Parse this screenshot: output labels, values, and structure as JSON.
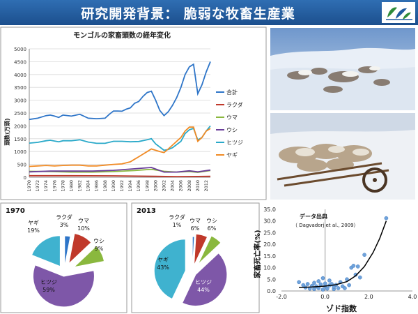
{
  "header": {
    "title": "研究開発背景： 脆弱な牧畜生産業",
    "accent_color": "#1f5aa0",
    "logo_icon": "leaf-logo-icon"
  },
  "chart_data": [
    {
      "type": "line",
      "title": "モンゴルの家畜頭数の経年変化",
      "ylabel": "頭数(万頭)",
      "xlabel": "",
      "ylim": [
        0,
        5000
      ],
      "y_ticks": [
        0,
        500,
        1000,
        1500,
        2000,
        2500,
        3000,
        3500,
        4000,
        4500,
        5000
      ],
      "x_ticks": [
        1970,
        1972,
        1974,
        1976,
        1978,
        1980,
        1982,
        1984,
        1986,
        1988,
        1990,
        1992,
        1994,
        1996,
        1998,
        2000,
        2002,
        2004,
        2006,
        2008,
        2010,
        2012
      ],
      "xlim": [
        1970,
        2013
      ],
      "grid": true,
      "legend_position": "right",
      "series": [
        {
          "name": "合計",
          "color": "#2e75c8",
          "points": [
            [
              1970,
              2250
            ],
            [
              1972,
              2300
            ],
            [
              1974,
              2400
            ],
            [
              1975,
              2420
            ],
            [
              1976,
              2380
            ],
            [
              1977,
              2330
            ],
            [
              1978,
              2420
            ],
            [
              1980,
              2380
            ],
            [
              1982,
              2450
            ],
            [
              1984,
              2300
            ],
            [
              1986,
              2280
            ],
            [
              1988,
              2300
            ],
            [
              1989,
              2450
            ],
            [
              1990,
              2580
            ],
            [
              1991,
              2580
            ],
            [
              1992,
              2570
            ],
            [
              1993,
              2650
            ],
            [
              1994,
              2700
            ],
            [
              1995,
              2880
            ],
            [
              1996,
              2950
            ],
            [
              1997,
              3150
            ],
            [
              1998,
              3300
            ],
            [
              1999,
              3350
            ],
            [
              2000,
              3000
            ],
            [
              2001,
              2600
            ],
            [
              2002,
              2400
            ],
            [
              2003,
              2550
            ],
            [
              2004,
              2800
            ],
            [
              2005,
              3100
            ],
            [
              2006,
              3500
            ],
            [
              2007,
              4000
            ],
            [
              2008,
              4300
            ],
            [
              2009,
              4400
            ],
            [
              2010,
              3250
            ],
            [
              2011,
              3600
            ],
            [
              2012,
              4100
            ],
            [
              2013,
              4500
            ]
          ]
        },
        {
          "name": "ラクダ",
          "color": "#c0392b",
          "points": [
            [
              1970,
              60
            ],
            [
              1980,
              60
            ],
            [
              1990,
              55
            ],
            [
              2000,
              35
            ],
            [
              2005,
              25
            ],
            [
              2010,
              30
            ],
            [
              2013,
              35
            ]
          ]
        },
        {
          "name": "ウマ",
          "color": "#8ab83e",
          "points": [
            [
              1970,
              230
            ],
            [
              1975,
              220
            ],
            [
              1980,
              200
            ],
            [
              1985,
              200
            ],
            [
              1990,
              220
            ],
            [
              1995,
              260
            ],
            [
              1999,
              310
            ],
            [
              2002,
              230
            ],
            [
              2005,
              200
            ],
            [
              2008,
              220
            ],
            [
              2010,
              190
            ],
            [
              2013,
              260
            ]
          ]
        },
        {
          "name": "ウシ",
          "color": "#6a3d9a",
          "points": [
            [
              1970,
              210
            ],
            [
              1975,
              240
            ],
            [
              1980,
              240
            ],
            [
              1985,
              240
            ],
            [
              1990,
              270
            ],
            [
              1995,
              330
            ],
            [
              1999,
              380
            ],
            [
              2002,
              200
            ],
            [
              2005,
              200
            ],
            [
              2008,
              250
            ],
            [
              2010,
              210
            ],
            [
              2013,
              280
            ]
          ]
        },
        {
          "name": "ヒツジ",
          "color": "#29a9c9",
          "points": [
            [
              1970,
              1330
            ],
            [
              1972,
              1360
            ],
            [
              1974,
              1420
            ],
            [
              1975,
              1440
            ],
            [
              1977,
              1380
            ],
            [
              1978,
              1420
            ],
            [
              1980,
              1420
            ],
            [
              1982,
              1460
            ],
            [
              1984,
              1370
            ],
            [
              1986,
              1320
            ],
            [
              1988,
              1320
            ],
            [
              1990,
              1400
            ],
            [
              1992,
              1400
            ],
            [
              1994,
              1380
            ],
            [
              1996,
              1390
            ],
            [
              1998,
              1460
            ],
            [
              1999,
              1500
            ],
            [
              2000,
              1300
            ],
            [
              2002,
              1050
            ],
            [
              2003,
              1080
            ],
            [
              2004,
              1150
            ],
            [
              2006,
              1400
            ],
            [
              2007,
              1700
            ],
            [
              2008,
              1850
            ],
            [
              2009,
              1900
            ],
            [
              2010,
              1450
            ],
            [
              2011,
              1550
            ],
            [
              2012,
              1800
            ],
            [
              2013,
              2000
            ]
          ]
        },
        {
          "name": "ヤギ",
          "color": "#f08a24",
          "points": [
            [
              1970,
              420
            ],
            [
              1972,
              440
            ],
            [
              1974,
              460
            ],
            [
              1976,
              440
            ],
            [
              1978,
              460
            ],
            [
              1980,
              470
            ],
            [
              1982,
              470
            ],
            [
              1984,
              440
            ],
            [
              1986,
              440
            ],
            [
              1988,
              470
            ],
            [
              1990,
              500
            ],
            [
              1992,
              520
            ],
            [
              1994,
              600
            ],
            [
              1995,
              700
            ],
            [
              1996,
              800
            ],
            [
              1997,
              900
            ],
            [
              1998,
              1000
            ],
            [
              1999,
              1100
            ],
            [
              2000,
              1050
            ],
            [
              2001,
              1000
            ],
            [
              2002,
              960
            ],
            [
              2003,
              1100
            ],
            [
              2004,
              1250
            ],
            [
              2005,
              1400
            ],
            [
              2006,
              1550
            ],
            [
              2007,
              1800
            ],
            [
              2008,
              1950
            ],
            [
              2009,
              1950
            ],
            [
              2010,
              1400
            ],
            [
              2011,
              1550
            ],
            [
              2012,
              1800
            ],
            [
              2013,
              1900
            ]
          ]
        }
      ]
    },
    {
      "type": "pie",
      "title": "1970",
      "slices": [
        {
          "label": "ラクダ",
          "value": 3,
          "text": "3%",
          "color": "#2e75c8"
        },
        {
          "label": "ウマ",
          "value": 10,
          "text": "10%",
          "color": "#c0392b"
        },
        {
          "label": "ウシ",
          "value": 9,
          "text": "9%",
          "color": "#8ab83e"
        },
        {
          "label": "ヒツジ",
          "value": 59,
          "text": "59%",
          "color": "#7e57a8"
        },
        {
          "label": "ヤギ",
          "value": 19,
          "text": "19%",
          "color": "#3fb2cf"
        }
      ]
    },
    {
      "type": "pie",
      "title": "2013",
      "slices": [
        {
          "label": "ラクダ",
          "value": 1,
          "text": "1%",
          "color": "#2e75c8"
        },
        {
          "label": "ウマ",
          "value": 6,
          "text": "6%",
          "color": "#c0392b"
        },
        {
          "label": "ウシ",
          "value": 6,
          "text": "6%",
          "color": "#8ab83e"
        },
        {
          "label": "ヒツジ",
          "value": 44,
          "text": "44%",
          "color": "#7e57a8"
        },
        {
          "label": "ヤギ",
          "value": 43,
          "text": "43%",
          "color": "#3fb2cf"
        }
      ]
    },
    {
      "type": "scatter",
      "title": "",
      "annotation": "データ出典",
      "annotation_sub": "（ Dagvadorj et al., 2009）",
      "xlabel": "ゾド指数",
      "ylabel": "家畜死亡率(%)",
      "xlim": [
        -2.0,
        4.0
      ],
      "ylim": [
        0.0,
        35.0
      ],
      "x_ticks": [
        "-2.0",
        "0.0",
        "2.0",
        "4.0"
      ],
      "y_ticks": [
        "0.0",
        "5.0",
        "10.0",
        "15.0",
        "20.0",
        "25.0",
        "30.0",
        "35.0"
      ],
      "point_color": "#6fa3dc",
      "trend_color": "#000000",
      "points": [
        [
          -1.2,
          3.8
        ],
        [
          -1.0,
          2.5
        ],
        [
          -0.9,
          1.5
        ],
        [
          -0.8,
          3.0
        ],
        [
          -0.7,
          1.0
        ],
        [
          -0.6,
          2.2
        ],
        [
          -0.5,
          0.8
        ],
        [
          -0.5,
          3.5
        ],
        [
          -0.4,
          2.0
        ],
        [
          -0.3,
          1.2
        ],
        [
          -0.3,
          4.2
        ],
        [
          -0.2,
          2.8
        ],
        [
          -0.1,
          0.6
        ],
        [
          -0.1,
          5.5
        ],
        [
          0.0,
          2.0
        ],
        [
          0.0,
          3.2
        ],
        [
          0.1,
          1.0
        ],
        [
          0.2,
          4.5
        ],
        [
          0.2,
          2.4
        ],
        [
          0.3,
          3.0
        ],
        [
          0.4,
          0.8
        ],
        [
          0.4,
          1.8
        ],
        [
          0.5,
          2.6
        ],
        [
          0.6,
          1.2
        ],
        [
          0.7,
          3.8
        ],
        [
          0.8,
          2.0
        ],
        [
          0.9,
          1.2
        ],
        [
          1.0,
          5.0
        ],
        [
          1.1,
          2.5
        ],
        [
          1.2,
          10.0
        ],
        [
          1.3,
          10.8
        ],
        [
          1.4,
          7.0
        ],
        [
          1.5,
          10.5
        ],
        [
          1.6,
          5.8
        ],
        [
          1.8,
          15.5
        ],
        [
          2.8,
          31.2
        ]
      ],
      "trend": [
        [
          -1.2,
          1.5
        ],
        [
          -0.6,
          1.7
        ],
        [
          0.0,
          2.1
        ],
        [
          0.5,
          2.7
        ],
        [
          1.0,
          4.0
        ],
        [
          1.4,
          6.5
        ],
        [
          1.8,
          10.5
        ],
        [
          2.2,
          16.5
        ],
        [
          2.5,
          22.5
        ],
        [
          2.8,
          30.0
        ]
      ]
    }
  ],
  "photos": [
    {
      "name": "dead-livestock-snow-photo",
      "sky": "#8fb0d8",
      "ground": "#e6ecf4"
    },
    {
      "name": "livestock-carcass-cart-photo",
      "sky": "#c9d5e4",
      "ground": "#eef1f5"
    }
  ]
}
